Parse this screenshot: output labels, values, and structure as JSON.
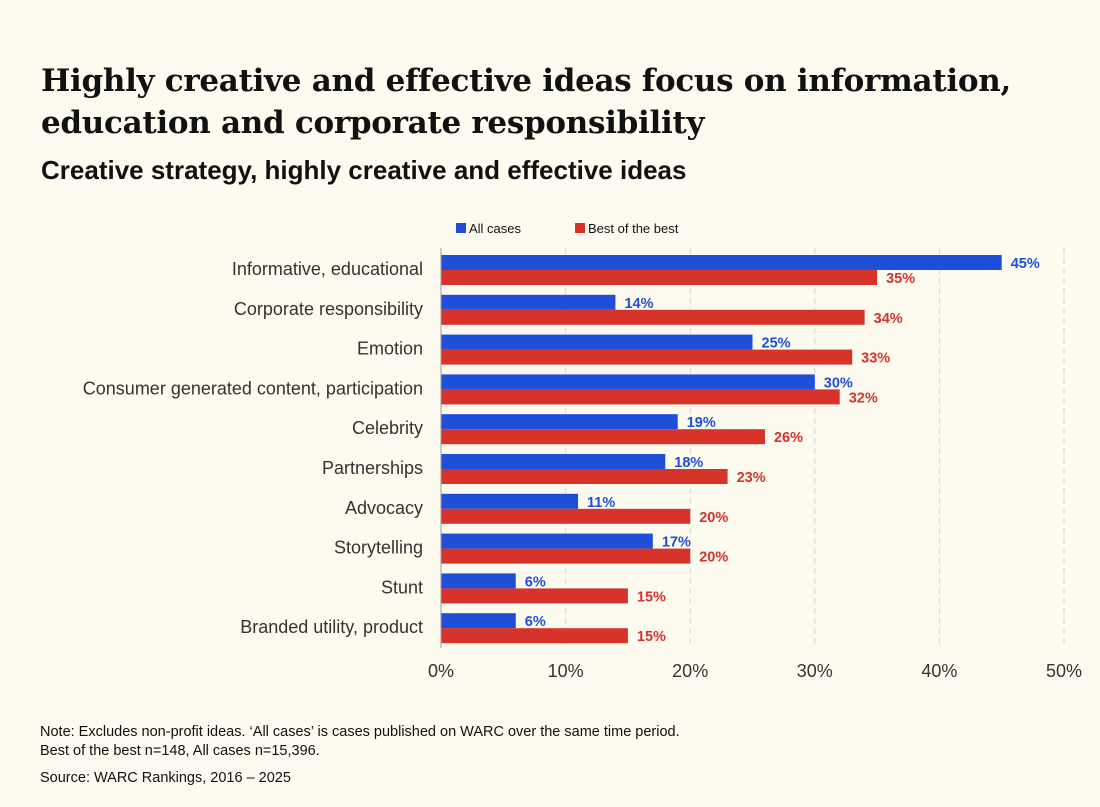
{
  "header": {
    "title": "Highly creative and effective ideas focus on information, education and corporate responsibility",
    "subtitle": "Creative strategy, highly creative and effective ideas"
  },
  "footer": {
    "note_line1": "Note: Excludes non-profit ideas. ‘All cases’ is cases published on WARC over the same time period.",
    "note_line2": "Best of the best n=148, All cases n=15,396.",
    "source": "Source: WARC Rankings, 2016 – 2025"
  },
  "colors": {
    "all_cases": "#1f4fd8",
    "best_of_best": "#d6332a",
    "background": "#fdfaf0",
    "grid": "#d8d6cf"
  },
  "chart_data": {
    "type": "bar",
    "orientation": "horizontal",
    "title": "Creative strategy, highly creative and effective ideas",
    "categories": [
      "Informative, educational",
      "Corporate responsibility",
      "Emotion",
      "Consumer generated content, participation",
      "Celebrity",
      "Partnerships",
      "Advocacy",
      "Storytelling",
      "Stunt",
      "Branded utility, product"
    ],
    "series": [
      {
        "name": "All cases",
        "color": "#1f4fd8",
        "values": [
          45,
          14,
          25,
          30,
          19,
          18,
          11,
          17,
          6,
          6
        ]
      },
      {
        "name": "Best of the best",
        "color": "#d6332a",
        "values": [
          35,
          34,
          33,
          32,
          26,
          23,
          20,
          20,
          15,
          15
        ]
      }
    ],
    "xlim": [
      0,
      50
    ],
    "xticks": [
      0,
      10,
      20,
      30,
      40,
      50
    ],
    "value_suffix": "%",
    "legend_position": "top",
    "grid": "vertical dashed"
  }
}
